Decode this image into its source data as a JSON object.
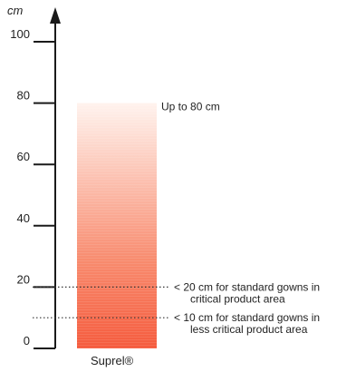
{
  "chart_data": {
    "type": "bar",
    "ylabel": "cm",
    "ylim": [
      0,
      100
    ],
    "yticks": [
      "0",
      "20",
      "40",
      "60",
      "80",
      "100"
    ],
    "categories": [
      "Suprel®"
    ],
    "values": [
      80
    ],
    "bar_fill": "gradient, solid orange-red at bottom fading to near white at top",
    "colors": {
      "bar_bottom": "#f55a3c",
      "bar_top": "#fff3ee",
      "axis": "#1a1a1a",
      "reference_line": "#333333"
    },
    "bar_label": "Up to 80 cm",
    "reference_lines": [
      {
        "y": 20,
        "line1": "<  20 cm for standard gowns in",
        "line2": "critical product area"
      },
      {
        "y": 10,
        "line1": "<  10 cm for standard gowns in",
        "line2": "less critical product area"
      }
    ],
    "grid": false
  }
}
